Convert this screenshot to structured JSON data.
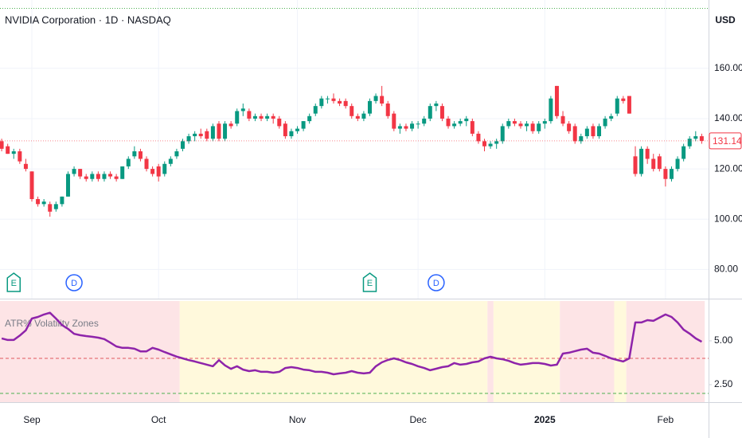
{
  "chart_data": [
    {
      "type": "candlestick",
      "title": "NVIDIA Corporation · 1D · NASDAQ",
      "currency": "USD",
      "up_color": "#089981",
      "down_color": "#f23645",
      "grid": true,
      "ylim": [
        70,
        184
      ],
      "yticks": [
        {
          "value": 80,
          "label": "80.00"
        },
        {
          "value": 100,
          "label": "100.00"
        },
        {
          "value": 120,
          "label": "120.00"
        },
        {
          "value": 140,
          "label": "140.00"
        },
        {
          "value": 160,
          "label": "160.00"
        }
      ],
      "xticks": [
        {
          "value": 5,
          "label": "Sep"
        },
        {
          "value": 26,
          "label": "Oct"
        },
        {
          "value": 49,
          "label": "Nov"
        },
        {
          "value": 69,
          "label": "Dec"
        },
        {
          "value": 90,
          "label": "2025"
        },
        {
          "value": 110,
          "label": "Feb"
        }
      ],
      "events": [
        {
          "index": 2,
          "label": "E",
          "color": "#089981"
        },
        {
          "index": 12,
          "label": "D",
          "color": "#2962ff"
        },
        {
          "index": 61,
          "label": "E",
          "color": "#089981"
        },
        {
          "index": 72,
          "label": "D",
          "color": "#2962ff"
        }
      ],
      "candles": [
        [
          131,
          132,
          127,
          128
        ],
        [
          129,
          130,
          126,
          126
        ],
        [
          126,
          128,
          124,
          127
        ],
        [
          127,
          128,
          122,
          123
        ],
        [
          122,
          124,
          119,
          120
        ],
        [
          119,
          119,
          107,
          108
        ],
        [
          108,
          109,
          105,
          106
        ],
        [
          106,
          108,
          105,
          107
        ],
        [
          106,
          107,
          101,
          103
        ],
        [
          104,
          107,
          103,
          106
        ],
        [
          106,
          109,
          105,
          109
        ],
        [
          109,
          119,
          109,
          118
        ],
        [
          118,
          121,
          117,
          120
        ],
        [
          120,
          120,
          116,
          117
        ],
        [
          117,
          118,
          115,
          116
        ],
        [
          116,
          119,
          115,
          118
        ],
        [
          118,
          119,
          115,
          116
        ],
        [
          116,
          119,
          115,
          118
        ],
        [
          118,
          119,
          116,
          117
        ],
        [
          117,
          118,
          115,
          116
        ],
        [
          116,
          121,
          116,
          121
        ],
        [
          121,
          125,
          120,
          124
        ],
        [
          125,
          129,
          124,
          127
        ],
        [
          127,
          128,
          123,
          124
        ],
        [
          124,
          125,
          119,
          120
        ],
        [
          120,
          121,
          117,
          118
        ],
        [
          121,
          122,
          115,
          117
        ],
        [
          118,
          123,
          117,
          122
        ],
        [
          122,
          125,
          121,
          124
        ],
        [
          125,
          128,
          124,
          127
        ],
        [
          128,
          132,
          127,
          131
        ],
        [
          131,
          134,
          130,
          133
        ],
        [
          133,
          135,
          131,
          134
        ],
        [
          134,
          136,
          132,
          133
        ],
        [
          135,
          136,
          131,
          132
        ],
        [
          132,
          138,
          131,
          137
        ],
        [
          138,
          139,
          131,
          132
        ],
        [
          132,
          139,
          131,
          138
        ],
        [
          138,
          139,
          136,
          137
        ],
        [
          138,
          144,
          137,
          143
        ],
        [
          143,
          146,
          141,
          144
        ],
        [
          143,
          144,
          139,
          140
        ],
        [
          140,
          142,
          139,
          141
        ],
        [
          141,
          142,
          139,
          140
        ],
        [
          140,
          142,
          139,
          141
        ],
        [
          141,
          142,
          138,
          140
        ],
        [
          140,
          141,
          136,
          137
        ],
        [
          138,
          139,
          132,
          133
        ],
        [
          133,
          136,
          132,
          135
        ],
        [
          135,
          137,
          134,
          136
        ],
        [
          136,
          139,
          135,
          139
        ],
        [
          139,
          142,
          138,
          141
        ],
        [
          142,
          146,
          141,
          145
        ],
        [
          145,
          149,
          144,
          148
        ],
        [
          148,
          149,
          146,
          148
        ],
        [
          148,
          150,
          146,
          147
        ],
        [
          147,
          148,
          145,
          146
        ],
        [
          147,
          148,
          144,
          145
        ],
        [
          145,
          146,
          140,
          141
        ],
        [
          141,
          142,
          139,
          140
        ],
        [
          140,
          143,
          139,
          142
        ],
        [
          142,
          148,
          141,
          147
        ],
        [
          147,
          150,
          146,
          149
        ],
        [
          149,
          153,
          145,
          146
        ],
        [
          146,
          147,
          140,
          141
        ],
        [
          142,
          143,
          135,
          136
        ],
        [
          136,
          138,
          134,
          137
        ],
        [
          137,
          138,
          135,
          136
        ],
        [
          136,
          139,
          135,
          138
        ],
        [
          138,
          139,
          136,
          138
        ],
        [
          138,
          141,
          137,
          140
        ],
        [
          140,
          146,
          139,
          145
        ],
        [
          145,
          147,
          143,
          146
        ],
        [
          145,
          146,
          139,
          140
        ],
        [
          140,
          141,
          136,
          137
        ],
        [
          137,
          139,
          136,
          138
        ],
        [
          138,
          140,
          137,
          139
        ],
        [
          139,
          141,
          137,
          140
        ],
        [
          139,
          140,
          133,
          134
        ],
        [
          134,
          135,
          130,
          131
        ],
        [
          131,
          132,
          127,
          129
        ],
        [
          129,
          131,
          128,
          130
        ],
        [
          130,
          132,
          128,
          131
        ],
        [
          131,
          138,
          130,
          137
        ],
        [
          137,
          140,
          136,
          139
        ],
        [
          139,
          140,
          137,
          138
        ],
        [
          138,
          139,
          136,
          137
        ],
        [
          137,
          139,
          135,
          138
        ],
        [
          138,
          139,
          134,
          135
        ],
        [
          135,
          139,
          134,
          138
        ],
        [
          138,
          140,
          136,
          139
        ],
        [
          139,
          149,
          138,
          148
        ],
        [
          153,
          153,
          140,
          141
        ],
        [
          141,
          143,
          137,
          138
        ],
        [
          138,
          139,
          134,
          135
        ],
        [
          137,
          138,
          130,
          131
        ],
        [
          131,
          134,
          130,
          133
        ],
        [
          133,
          137,
          132,
          136
        ],
        [
          137,
          138,
          132,
          133
        ],
        [
          133,
          138,
          132,
          137
        ],
        [
          137,
          141,
          136,
          140
        ],
        [
          140,
          142,
          139,
          141
        ],
        [
          142,
          149,
          141,
          148
        ],
        [
          148,
          149,
          146,
          147
        ],
        [
          149,
          149,
          142,
          142
        ],
        [
          125,
          129,
          117,
          118
        ],
        [
          118,
          129,
          117,
          128
        ],
        [
          128,
          129,
          122,
          124
        ],
        [
          124,
          126,
          119,
          120
        ],
        [
          125,
          126,
          119,
          120
        ],
        [
          120,
          121,
          113,
          116
        ],
        [
          116,
          121,
          115,
          120
        ],
        [
          120,
          125,
          119,
          124
        ],
        [
          124,
          130,
          123,
          129
        ],
        [
          129,
          133,
          128,
          132
        ],
        [
          132,
          135,
          131,
          133
        ],
        [
          133,
          134,
          130,
          131.14
        ]
      ]
    },
    {
      "type": "line",
      "title": "ATR% Volatility Zones",
      "ylim": [
        1.5,
        7.27
      ],
      "yticks": [
        {
          "value": 2.5,
          "label": "2.50"
        },
        {
          "value": 5,
          "label": "5.00"
        }
      ],
      "levels": [
        {
          "value": 4,
          "color": "#e0575f"
        },
        {
          "value": 2,
          "color": "#4caf50"
        }
      ],
      "zones": [
        {
          "start": 0,
          "end": 29,
          "color": "#fde4e6"
        },
        {
          "start": 30,
          "end": 80,
          "color": "#fff9dc"
        },
        {
          "start": 81,
          "end": 81,
          "color": "#fde4e6"
        },
        {
          "start": 82,
          "end": 92,
          "color": "#fff9dc"
        },
        {
          "start": 93,
          "end": 101,
          "color": "#fde4e6"
        },
        {
          "start": 102,
          "end": 103,
          "color": "#fff9dc"
        },
        {
          "start": 104,
          "end": 116,
          "color": "#fde4e6"
        }
      ],
      "series": [
        {
          "color": "#8e24aa",
          "values": [
            5.14,
            5.05,
            5.05,
            5.3,
            5.6,
            6.27,
            6.36,
            6.5,
            6.6,
            6.27,
            5.9,
            5.68,
            5.4,
            5.32,
            5.27,
            5.23,
            5.18,
            5.1,
            4.9,
            4.68,
            4.6,
            4.6,
            4.55,
            4.4,
            4.4,
            4.6,
            4.5,
            4.36,
            4.23,
            4.1,
            4.0,
            3.9,
            3.82,
            3.73,
            3.64,
            3.55,
            3.9,
            3.6,
            3.4,
            3.55,
            3.36,
            3.27,
            3.32,
            3.23,
            3.23,
            3.18,
            3.23,
            3.45,
            3.5,
            3.45,
            3.36,
            3.32,
            3.23,
            3.23,
            3.18,
            3.09,
            3.14,
            3.18,
            3.27,
            3.18,
            3.14,
            3.18,
            3.55,
            3.77,
            3.91,
            4.0,
            3.91,
            3.77,
            3.68,
            3.55,
            3.45,
            3.32,
            3.41,
            3.5,
            3.55,
            3.73,
            3.64,
            3.68,
            3.77,
            3.82,
            4.0,
            4.09,
            4.0,
            3.95,
            3.86,
            3.73,
            3.64,
            3.68,
            3.73,
            3.73,
            3.68,
            3.59,
            3.64,
            4.27,
            4.32,
            4.41,
            4.5,
            4.55,
            4.32,
            4.27,
            4.14,
            4.0,
            3.91,
            3.82,
            4.0,
            6.05,
            6.05,
            6.18,
            6.14,
            6.32,
            6.5,
            6.36,
            6.05,
            5.64,
            5.41,
            5.14,
            4.95
          ]
        }
      ]
    }
  ]
}
